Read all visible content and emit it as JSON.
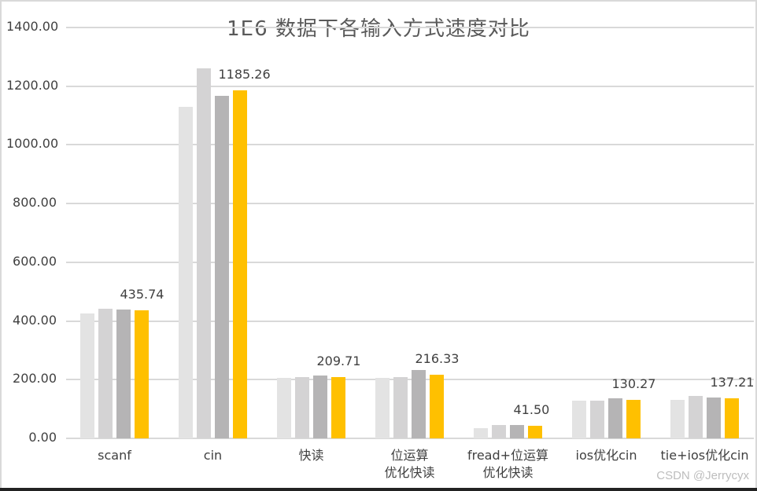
{
  "chart_data": {
    "type": "bar",
    "title": "1E6 数据下各输入方式速度对比",
    "xlabel": "",
    "ylabel": "",
    "ylim": [
      0,
      1400
    ],
    "y_ticks": [
      "0.00",
      "200.00",
      "400.00",
      "600.00",
      "800.00",
      "1000.00",
      "1200.00",
      "1400.00"
    ],
    "grid": true,
    "legend": null,
    "categories": [
      "scanf",
      "cin",
      "快读",
      "位运算\n优化快读",
      "fread+位运算\n优化快读",
      "ios优化cin",
      "tie+ios优化cin"
    ],
    "series": [
      {
        "name": "series-1",
        "color": "#e3e3e3",
        "values": [
          425,
          1130,
          205,
          207,
          36,
          128,
          131
        ]
      },
      {
        "name": "series-2",
        "color": "#d4d3d4",
        "values": [
          443,
          1260,
          210,
          210,
          45,
          128,
          145
        ]
      },
      {
        "name": "series-3",
        "color": "#b5b4b5",
        "values": [
          438,
          1167,
          215,
          233,
          46,
          137,
          140
        ]
      },
      {
        "name": "series-4",
        "color": "#ffc000",
        "values": [
          435.74,
          1185.26,
          209.71,
          216.33,
          41.5,
          130.27,
          137.21
        ]
      }
    ],
    "data_labels": [
      "435.74",
      "1185.26",
      "209.71",
      "216.33",
      "41.50",
      "130.27",
      "137.21"
    ]
  },
  "watermark": "CSDN @Jerrycyx"
}
